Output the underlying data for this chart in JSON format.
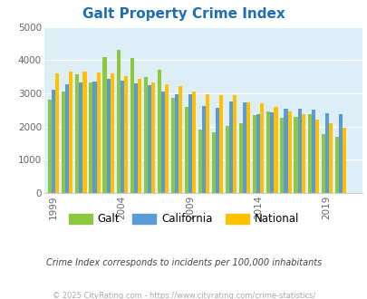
{
  "title": "Galt Property Crime Index",
  "subtitle": "Crime Index corresponds to incidents per 100,000 inhabitants",
  "footer": "© 2025 CityRating.com - https://www.cityrating.com/crime-statistics/",
  "years": [
    1999,
    2000,
    2001,
    2002,
    2003,
    2004,
    2005,
    2006,
    2007,
    2008,
    2009,
    2010,
    2011,
    2012,
    2013,
    2014,
    2015,
    2016,
    2017,
    2018,
    2019,
    2020,
    2021
  ],
  "galt": [
    2820,
    3060,
    3570,
    3340,
    4100,
    4300,
    4050,
    3490,
    3720,
    2870,
    2580,
    1920,
    1820,
    2010,
    2100,
    2350,
    2440,
    2260,
    2290,
    2380,
    1760,
    1700,
    null
  ],
  "california": [
    3100,
    3280,
    3340,
    3360,
    3430,
    3390,
    3310,
    3250,
    3040,
    2970,
    2960,
    2610,
    2570,
    2750,
    2720,
    2380,
    2420,
    2540,
    2530,
    2520,
    2390,
    2360,
    null
  ],
  "national": [
    3600,
    3650,
    3660,
    3620,
    3590,
    3520,
    3440,
    3340,
    3260,
    3220,
    3040,
    2960,
    2940,
    2940,
    2730,
    2700,
    2600,
    2450,
    2360,
    2200,
    2110,
    1960,
    null
  ],
  "ylim": [
    0,
    5000
  ],
  "yticks": [
    0,
    1000,
    2000,
    3000,
    4000,
    5000
  ],
  "xtick_labels": [
    "1999",
    "2004",
    "2009",
    "2014",
    "2019"
  ],
  "xtick_positions": [
    1999,
    2004,
    2009,
    2014,
    2019
  ],
  "color_galt": "#8dc63f",
  "color_california": "#5b9bd5",
  "color_national": "#ffc000",
  "bg_color": "#ddeef6",
  "title_color": "#1f6eb5",
  "subtitle_color": "#444444",
  "footer_color": "#aaaaaa",
  "legend_galt": "Galt",
  "legend_california": "California",
  "legend_national": "National",
  "bar_width": 0.27
}
